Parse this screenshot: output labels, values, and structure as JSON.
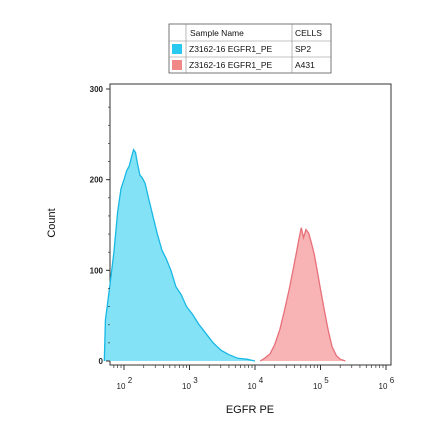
{
  "chart_data": {
    "type": "area",
    "xlabel": "EGFR PE",
    "ylabel": "Count",
    "xscale": "biexponential",
    "xlim": [
      40,
      1100000
    ],
    "ylim": [
      0,
      300
    ],
    "xticks": [
      {
        "value": 100,
        "base": "10",
        "exp": "2"
      },
      {
        "value": 1000,
        "base": "10",
        "exp": "3"
      },
      {
        "value": 10000,
        "base": "10",
        "exp": "4"
      },
      {
        "value": 100000,
        "base": "10",
        "exp": "5"
      },
      {
        "value": 1000000,
        "base": "10",
        "exp": "6"
      }
    ],
    "yticks": [
      {
        "value": 0,
        "label": "0"
      },
      {
        "value": 100,
        "label": "100"
      },
      {
        "value": 200,
        "label": "200"
      },
      {
        "value": 300,
        "label": "300"
      }
    ],
    "legend": {
      "headers": [
        "Sample Name",
        "CELLS"
      ],
      "rows": [
        {
          "sample": "Z3162-16 EGFR1_PE",
          "cells": "SP2",
          "color": "#29c8ee"
        },
        {
          "sample": "Z3162-16 EGFR1_PE",
          "cells": "A431",
          "color": "#f08888"
        }
      ]
    },
    "series": [
      {
        "cells": "SP2",
        "fill": "#84e2f6",
        "stroke": "#18b8e4",
        "points": [
          [
            50,
            0
          ],
          [
            52,
            45
          ],
          [
            60,
            80
          ],
          [
            70,
            120
          ],
          [
            80,
            165
          ],
          [
            90,
            190
          ],
          [
            100,
            200
          ],
          [
            110,
            210
          ],
          [
            120,
            215
          ],
          [
            130,
            225
          ],
          [
            140,
            233
          ],
          [
            150,
            230
          ],
          [
            160,
            218
          ],
          [
            175,
            205
          ],
          [
            190,
            202
          ],
          [
            210,
            196
          ],
          [
            240,
            178
          ],
          [
            280,
            158
          ],
          [
            320,
            141
          ],
          [
            380,
            122
          ],
          [
            440,
            113
          ],
          [
            520,
            100
          ],
          [
            620,
            82
          ],
          [
            750,
            73
          ],
          [
            900,
            60
          ],
          [
            1100,
            52
          ],
          [
            1400,
            40
          ],
          [
            1800,
            30
          ],
          [
            2300,
            20
          ],
          [
            3000,
            12
          ],
          [
            4000,
            7
          ],
          [
            5500,
            3
          ],
          [
            7500,
            2
          ],
          [
            10000,
            0
          ]
        ]
      },
      {
        "cells": "A431",
        "fill": "#f8b3b5",
        "stroke": "#e8707a",
        "points": [
          [
            12000,
            0
          ],
          [
            14000,
            3
          ],
          [
            17000,
            8
          ],
          [
            20000,
            18
          ],
          [
            24000,
            35
          ],
          [
            28000,
            55
          ],
          [
            33000,
            78
          ],
          [
            38000,
            100
          ],
          [
            43000,
            120
          ],
          [
            47000,
            135
          ],
          [
            51000,
            147
          ],
          [
            55000,
            136
          ],
          [
            60000,
            145
          ],
          [
            66000,
            141
          ],
          [
            72000,
            131
          ],
          [
            80000,
            118
          ],
          [
            90000,
            98
          ],
          [
            100000,
            79
          ],
          [
            115000,
            55
          ],
          [
            130000,
            35
          ],
          [
            150000,
            16
          ],
          [
            175000,
            6
          ],
          [
            200000,
            2
          ],
          [
            240000,
            0
          ]
        ]
      }
    ]
  }
}
